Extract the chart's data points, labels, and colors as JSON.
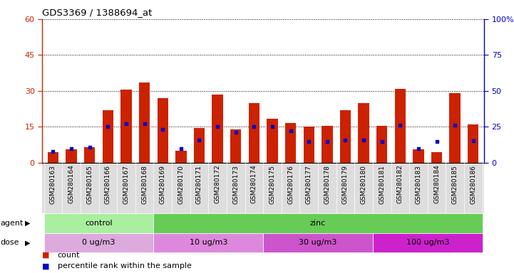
{
  "title": "GDS3369 / 1388694_at",
  "samples": [
    "GSM280163",
    "GSM280164",
    "GSM280165",
    "GSM280166",
    "GSM280167",
    "GSM280168",
    "GSM280169",
    "GSM280170",
    "GSM280171",
    "GSM280172",
    "GSM280173",
    "GSM280174",
    "GSM280175",
    "GSM280176",
    "GSM280177",
    "GSM280178",
    "GSM280179",
    "GSM280180",
    "GSM280181",
    "GSM280182",
    "GSM280183",
    "GSM280184",
    "GSM280185",
    "GSM280186"
  ],
  "count_values": [
    4.5,
    5.5,
    6.5,
    22.0,
    30.5,
    33.5,
    27.0,
    5.0,
    14.5,
    28.5,
    14.0,
    25.0,
    18.5,
    16.5,
    15.0,
    15.5,
    22.0,
    25.0,
    15.5,
    31.0,
    5.5,
    4.5,
    29.0,
    16.0
  ],
  "percentile_values": [
    8.0,
    10.0,
    11.0,
    25.0,
    27.0,
    27.0,
    23.0,
    10.0,
    16.0,
    25.0,
    21.0,
    25.0,
    25.0,
    22.0,
    15.0,
    15.0,
    16.0,
    16.0,
    15.0,
    26.0,
    10.0,
    15.0,
    26.0,
    15.5
  ],
  "bar_color": "#cc2200",
  "dot_color": "#0000cc",
  "left_ylim": [
    0,
    60
  ],
  "right_ylim": [
    0,
    100
  ],
  "left_yticks": [
    0,
    15,
    30,
    45,
    60
  ],
  "right_yticks": [
    0,
    25,
    50,
    75,
    100
  ],
  "left_yticklabels": [
    "0",
    "15",
    "30",
    "45",
    "60"
  ],
  "right_yticklabels": [
    "0",
    "25",
    "50",
    "75",
    "100%"
  ],
  "agent_groups": [
    {
      "label": "control",
      "start": 0,
      "end": 5,
      "color": "#aaeea0"
    },
    {
      "label": "zinc",
      "start": 6,
      "end": 23,
      "color": "#66cc55"
    }
  ],
  "dose_groups": [
    {
      "label": "0 ug/m3",
      "start": 0,
      "end": 5,
      "color": "#ddaadd"
    },
    {
      "label": "10 ug/m3",
      "start": 6,
      "end": 11,
      "color": "#dd88dd"
    },
    {
      "label": "30 ug/m3",
      "start": 12,
      "end": 17,
      "color": "#cc55cc"
    },
    {
      "label": "100 ug/m3",
      "start": 18,
      "end": 23,
      "color": "#cc22cc"
    }
  ],
  "legend_count_label": "count",
  "legend_pct_label": "percentile rank within the sample",
  "agent_label": "agent",
  "dose_label": "dose",
  "plot_bg_color": "#ffffff",
  "fig_bg_color": "#ffffff",
  "xtick_bg_color": "#dddddd"
}
